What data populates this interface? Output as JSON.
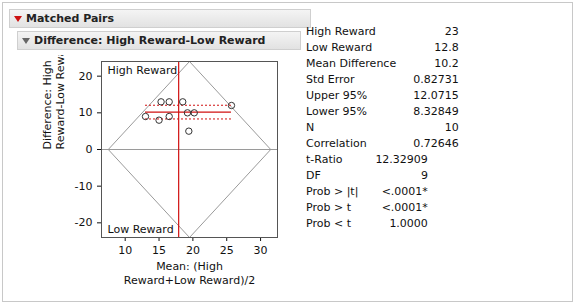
{
  "panel_title": "Matched Pairs",
  "subtitle": "Difference: High Reward-Low Reward",
  "chart_data": {
    "type": "scatter",
    "x_label": [
      "Mean: (High",
      "Reward+Low Reward)/2"
    ],
    "y_label": [
      "Difference: High",
      "Reward-Low Reward"
    ],
    "annotations": [
      "High Reward",
      "Low Reward"
    ],
    "x": [
      13.0,
      15.0,
      15.3,
      16.5,
      16.5,
      18.5,
      19.2,
      19.4,
      20.2,
      25.7
    ],
    "values": [
      9,
      8,
      13,
      13,
      9,
      13,
      10,
      5,
      10,
      12
    ],
    "color": "#333333",
    "marker": "circle",
    "xlim": [
      6.5,
      32.5
    ],
    "xticks": [
      10,
      15,
      20,
      25,
      30
    ],
    "ylim": [
      -24,
      24
    ],
    "yticks": [
      -20,
      -10,
      0,
      10,
      20
    ],
    "mean_difference": 10.2,
    "ci": [
      8.32849,
      12.0715
    ],
    "mean_of_means": 17.9,
    "zero_line": 0,
    "diamond": [
      [
        19.5,
        24
      ],
      [
        31.5,
        0
      ],
      [
        19.5,
        -24
      ],
      [
        7.5,
        0
      ]
    ]
  },
  "stats": [
    [
      [
        "High Reward",
        "23"
      ],
      [
        "Low Reward",
        "12.8"
      ],
      [
        "Mean Difference",
        "10.2"
      ],
      [
        "Std Error",
        "0.82731"
      ],
      [
        "Upper 95%",
        "12.0715"
      ],
      [
        "Lower 95%",
        "8.32849"
      ],
      [
        "N",
        "10"
      ],
      [
        "Correlation",
        "0.72646"
      ]
    ],
    [
      [
        "t-Ratio",
        "12.32909"
      ],
      [
        "DF",
        "9"
      ],
      [
        "Prob > |t|",
        "<.0001*"
      ],
      [
        "Prob > t",
        "<.0001*"
      ],
      [
        "Prob < t",
        "1.0000"
      ]
    ]
  ]
}
